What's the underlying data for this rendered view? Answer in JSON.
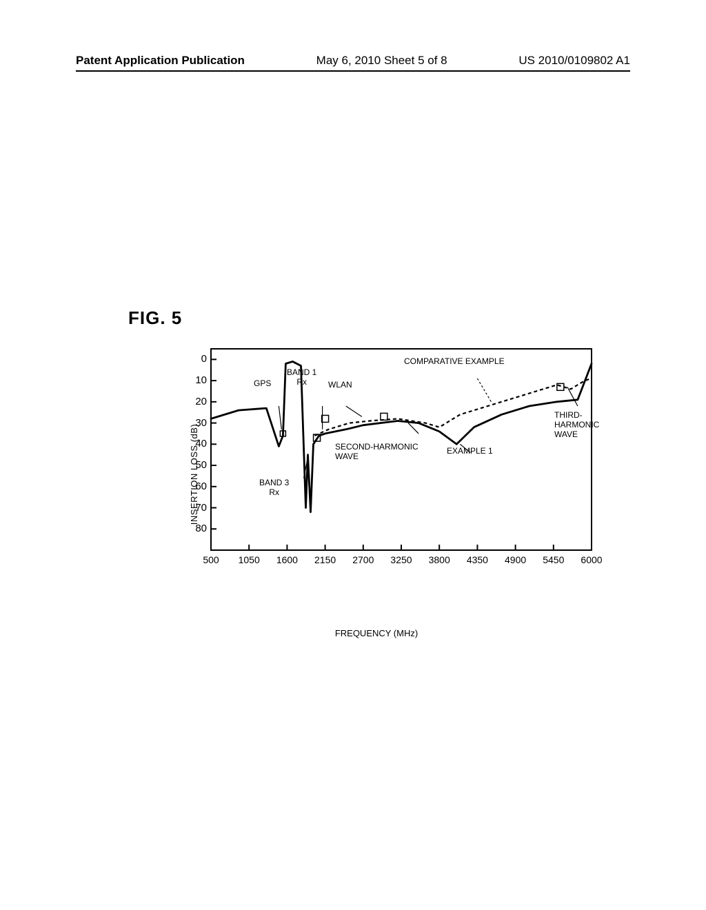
{
  "header": {
    "left": "Patent Application Publication",
    "mid": "May 6, 2010  Sheet 5 of 8",
    "right": "US 2010/0109802 A1"
  },
  "figure_label": "FIG. 5",
  "chart": {
    "type": "line",
    "y_label": "INSERTION LOSS (dB)",
    "x_label": "FREQUENCY (MHz)",
    "xlim": [
      500,
      6000
    ],
    "ylim": [
      90,
      -5
    ],
    "yticks": [
      0,
      10,
      20,
      30,
      40,
      50,
      60,
      70,
      80
    ],
    "xticks": [
      500,
      1050,
      1600,
      2150,
      2700,
      3250,
      3800,
      4350,
      4900,
      5450,
      6000
    ],
    "tick_fontsize": 14,
    "label_fontsize": 13,
    "border_color": "#000000",
    "background_color": "#ffffff",
    "line_color": "#000000",
    "line_width_solid": 2.8,
    "line_width_dashed": 2.2,
    "dash_pattern": "5 4",
    "series": {
      "example1": {
        "style": "solid",
        "points": [
          [
            500,
            28
          ],
          [
            900,
            24
          ],
          [
            1300,
            23
          ],
          [
            1480,
            41
          ],
          [
            1540,
            36
          ],
          [
            1580,
            2
          ],
          [
            1680,
            1
          ],
          [
            1800,
            3
          ],
          [
            1870,
            70
          ],
          [
            1900,
            45
          ],
          [
            1940,
            72
          ],
          [
            1980,
            40
          ],
          [
            2060,
            36
          ],
          [
            2150,
            35
          ],
          [
            2450,
            33
          ],
          [
            2700,
            31
          ],
          [
            3200,
            29
          ],
          [
            3500,
            30
          ],
          [
            3800,
            34
          ],
          [
            4050,
            40
          ],
          [
            4300,
            32
          ],
          [
            4700,
            26
          ],
          [
            5100,
            22
          ],
          [
            5500,
            20
          ],
          [
            5800,
            19
          ],
          [
            6000,
            2
          ]
        ]
      },
      "comparative": {
        "style": "dashed",
        "points": [
          [
            2000,
            36
          ],
          [
            2200,
            33
          ],
          [
            2500,
            30
          ],
          [
            2800,
            29
          ],
          [
            3200,
            28
          ],
          [
            3600,
            30
          ],
          [
            3800,
            32
          ],
          [
            4100,
            26
          ],
          [
            4500,
            22
          ],
          [
            4900,
            18
          ],
          [
            5300,
            14
          ],
          [
            5500,
            12
          ],
          [
            5700,
            14
          ],
          [
            5900,
            10
          ],
          [
            6000,
            9
          ]
        ]
      }
    },
    "annotations": {
      "gps": "GPS",
      "band1": "BAND 1\nRx",
      "wlan": "WLAN",
      "comparative": "COMPARATIVE EXAMPLE",
      "third_harmonic": "THIRD-\nHARMONIC\nWAVE",
      "second_harmonic": "SECOND-HARMONIC\nWAVE",
      "example1": "EXAMPLE 1",
      "band3": "BAND 3\nRx"
    }
  }
}
